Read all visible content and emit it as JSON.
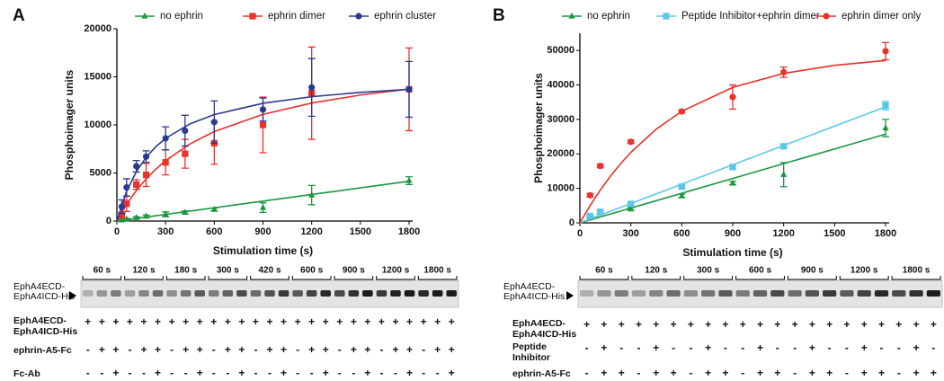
{
  "chart_data": [
    {
      "type": "scatter",
      "panel_label": "A",
      "y_label": "Phosphoimager  units",
      "x_label": "Stimulation time (s)",
      "xlim": [
        0,
        1800
      ],
      "xticks": [
        0,
        300,
        600,
        900,
        1200,
        1500,
        1800
      ],
      "ylim": [
        0,
        20000
      ],
      "yticks": [
        0,
        5000,
        10000,
        15000,
        20000
      ],
      "x": [
        30,
        60,
        120,
        180,
        300,
        420,
        600,
        900,
        1200,
        1800
      ],
      "fit_x": [
        0,
        60,
        120,
        180,
        240,
        300,
        450,
        600,
        900,
        1200,
        1500,
        1800
      ],
      "series": [
        {
          "name": "no ephrin",
          "color": "#1a9641",
          "marker": "triangle",
          "values": [
            100,
            200,
            350,
            500,
            700,
            900,
            1200,
            1400,
            2700,
            4200
          ],
          "errors": [
            50,
            80,
            100,
            120,
            250,
            150,
            150,
            500,
            1000,
            400
          ],
          "fit": [
            0,
            138,
            276,
            414,
            552,
            690,
            1035,
            1380,
            2070,
            2760,
            3450,
            4140
          ]
        },
        {
          "name": "ephrin dimer",
          "color": "#e8322a",
          "marker": "square",
          "values": [
            600,
            1800,
            3800,
            4800,
            6100,
            7000,
            8100,
            10000,
            13300,
            13700
          ],
          "errors": [
            300,
            800,
            500,
            1200,
            1300,
            1500,
            2200,
            2900,
            4800,
            4300
          ],
          "fit": [
            0,
            1742,
            3176,
            4378,
            5400,
            6279,
            8020,
            9310,
            11096,
            12273,
            13107,
            13729
          ]
        },
        {
          "name": "ephrin cluster",
          "color": "#2b3990",
          "marker": "circle",
          "values": [
            1500,
            3500,
            5700,
            6700,
            8600,
            9400,
            10300,
            11600,
            13900,
            13700
          ],
          "errors": [
            700,
            900,
            600,
            600,
            1200,
            1600,
            2200,
            1200,
            3000,
            2900
          ],
          "fit": [
            0,
            3088,
            5152,
            6628,
            7737,
            8601,
            10106,
            11074,
            12247,
            12932,
            13381,
            13698
          ]
        }
      ]
    },
    {
      "type": "scatter",
      "panel_label": "B",
      "y_label": "Phosphoimager  units",
      "x_label": "Stimulation time (s)",
      "xlim": [
        0,
        1800
      ],
      "xticks": [
        0,
        300,
        600,
        900,
        1200,
        1500,
        1800
      ],
      "ylim": [
        0,
        55000
      ],
      "yticks": [
        0,
        10000,
        20000,
        30000,
        40000,
        50000
      ],
      "x": [
        60,
        120,
        300,
        600,
        900,
        1200,
        1800
      ],
      "fit_x": [
        0,
        60,
        120,
        180,
        240,
        300,
        450,
        600,
        900,
        1200,
        1500,
        1800
      ],
      "series": [
        {
          "name": "no ephrin",
          "color": "#1a9641",
          "marker": "triangle",
          "values": [
            1500,
            3000,
            4000,
            7800,
            11500,
            14000,
            27500
          ],
          "errors": [
            400,
            500,
            400,
            500,
            500,
            3500,
            2500
          ],
          "fit": [
            0,
            858,
            1716,
            2574,
            3432,
            4290,
            6435,
            8580,
            12870,
            17160,
            21450,
            25740
          ]
        },
        {
          "name": "Peptide Inhibitor+ephrin dimer",
          "color": "#5bc8e8",
          "marker": "square",
          "values": [
            2000,
            3200,
            5500,
            10500,
            16200,
            22200,
            34000
          ],
          "errors": [
            300,
            400,
            400,
            500,
            500,
            600,
            1200
          ],
          "fit": [
            0,
            1122,
            2244,
            3366,
            4488,
            5610,
            8415,
            11220,
            16830,
            22440,
            28050,
            33660
          ]
        },
        {
          "name": "ephrin dimer only",
          "color": "#e8322a",
          "marker": "circle",
          "values": [
            8000,
            16500,
            23500,
            32300,
            36500,
            43700,
            49800
          ],
          "errors": [
            500,
            500,
            500,
            500,
            3500,
            1500,
            2500
          ],
          "fit": [
            0,
            5000,
            9506,
            13560,
            17180,
            20440,
            27200,
            32350,
            39300,
            43350,
            45700,
            47090
          ]
        }
      ]
    }
  ],
  "blots": [
    {
      "side_label": [
        "EphA4ECD-",
        "EphA4ICD-His"
      ],
      "groups": [
        "60 s",
        "120 s",
        "180 s",
        "300 s",
        "420 s",
        "600 s",
        "900 s",
        "1200 s",
        "1800 s"
      ],
      "rows": [
        {
          "label": [
            "EphA4ECD-",
            "EphA4ICD-His"
          ],
          "signs": [
            "+",
            "+",
            "+"
          ]
        },
        {
          "label": [
            "ephrin-A5-Fc"
          ],
          "signs": [
            "-",
            "+",
            "+"
          ]
        },
        {
          "label": [
            "Fc-Ab"
          ],
          "signs": [
            "-",
            "-",
            "+"
          ]
        }
      ]
    },
    {
      "side_label": [
        "EphA4ECD-",
        "EphA4ICD-His"
      ],
      "groups": [
        "60 s",
        "120 s",
        "300 s",
        "600 s",
        "900 s",
        "1200 s",
        "1800 s"
      ],
      "rows": [
        {
          "label": [
            "EphA4ECD-",
            "EphA4ICD-His"
          ],
          "signs": [
            "+",
            "+",
            "+"
          ]
        },
        {
          "label": [
            "Peptide",
            "Inhibitor"
          ],
          "signs": [
            "-",
            "+",
            "-"
          ]
        },
        {
          "label": [
            "ephrin-A5-Fc"
          ],
          "signs": [
            "-",
            "+",
            "+"
          ]
        }
      ]
    }
  ]
}
